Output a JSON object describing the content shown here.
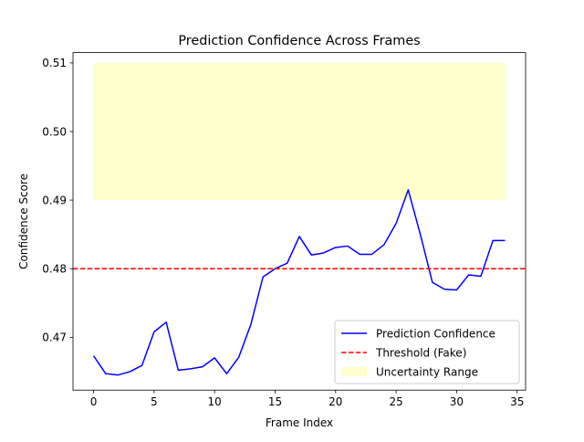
{
  "chart_data": {
    "type": "line",
    "title": "Prediction Confidence Across Frames",
    "xlabel": "Frame Index",
    "ylabel": "Confidence Score",
    "xlim": [
      -1.7,
      35.7
    ],
    "ylim": [
      0.4623,
      0.5115
    ],
    "x_ticks": [
      0,
      5,
      10,
      15,
      20,
      25,
      30,
      35
    ],
    "y_ticks": [
      0.47,
      0.48,
      0.49,
      0.5,
      0.51
    ],
    "y_tick_labels": [
      "0.47",
      "0.48",
      "0.49",
      "0.50",
      "0.51"
    ],
    "grid": false,
    "legend_position": "lower right",
    "series": [
      {
        "name": "Prediction Confidence",
        "style": "solid",
        "color": "#0000ff",
        "x": [
          0,
          1,
          2,
          3,
          4,
          5,
          6,
          7,
          8,
          9,
          10,
          11,
          12,
          13,
          14,
          15,
          16,
          17,
          18,
          19,
          20,
          21,
          22,
          23,
          24,
          25,
          26,
          27,
          28,
          29,
          30,
          31,
          32,
          33,
          34
        ],
        "y": [
          0.4673,
          0.4647,
          0.4645,
          0.465,
          0.4659,
          0.4708,
          0.4722,
          0.4652,
          0.4654,
          0.4657,
          0.467,
          0.4647,
          0.4671,
          0.4719,
          0.4788,
          0.48,
          0.4808,
          0.4847,
          0.482,
          0.4823,
          0.4831,
          0.4833,
          0.4821,
          0.4821,
          0.4835,
          0.4866,
          0.4915,
          0.485,
          0.478,
          0.477,
          0.4769,
          0.4791,
          0.4789,
          0.4841,
          0.4841
        ]
      }
    ],
    "threshold": {
      "name": "Threshold (Fake)",
      "value": 0.48,
      "style": "dashed",
      "color": "#ff0000"
    },
    "band": {
      "name": "Uncertainty Range",
      "x_range": [
        0,
        34
      ],
      "y_range": [
        0.49,
        0.51
      ],
      "color": "#ffff99"
    }
  }
}
